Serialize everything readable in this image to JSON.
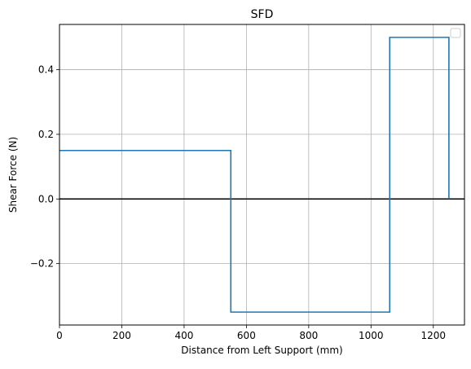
{
  "chart_data": {
    "type": "line",
    "title": "SFD",
    "xlabel": "Distance from Left Support (mm)",
    "ylabel": "Shear Force (N)",
    "xlim": [
      0,
      1300
    ],
    "ylim": [
      -0.39,
      0.54
    ],
    "x_ticks": [
      0,
      200,
      400,
      600,
      800,
      1000,
      1200
    ],
    "y_ticks": [
      -0.2,
      0.0,
      0.2,
      0.4
    ],
    "y_tick_labels": [
      "−0.2",
      "0.0",
      "0.2",
      "0.4"
    ],
    "grid": true,
    "legend": {
      "position": "upper right",
      "entries": []
    },
    "series": [
      {
        "x": [
          0,
          550,
          550,
          1060,
          1060,
          1250,
          1250
        ],
        "y": [
          0.15,
          0.15,
          -0.35,
          -0.35,
          0.5,
          0.5,
          0.0
        ],
        "color": "#1f77b4"
      }
    ],
    "zero_line": {
      "y": 0.0,
      "color": "#000000"
    }
  }
}
